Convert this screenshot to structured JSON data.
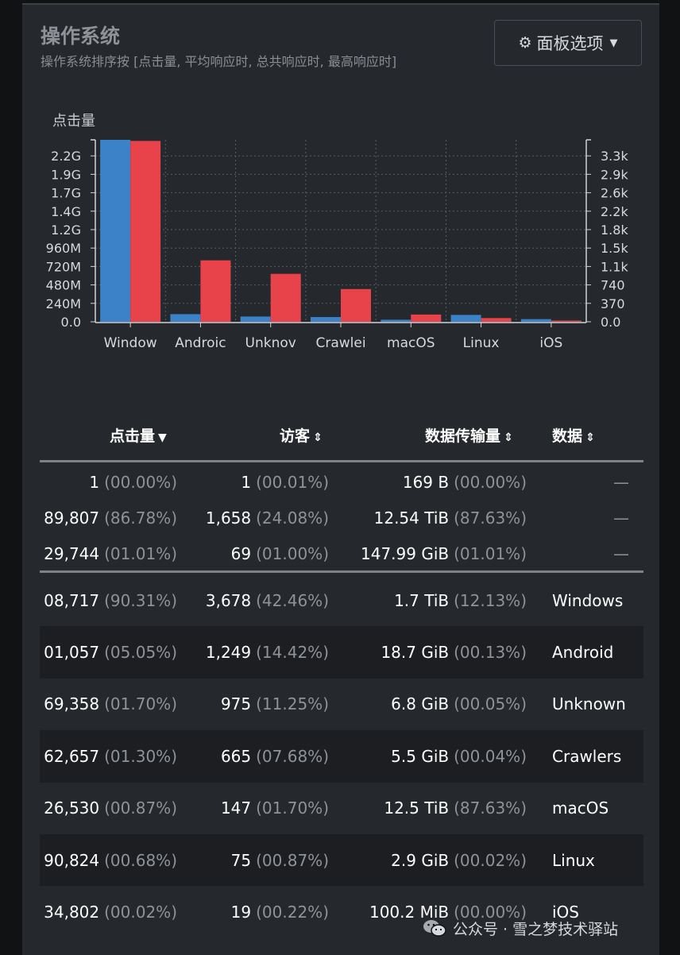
{
  "panel": {
    "title": "操作系统",
    "subtitle": "操作系统排序按 [点击量, 平均响应时, 总共响应时, 最高响应时]",
    "options_button": {
      "icon": "gear-icon",
      "label": "面板选项",
      "caret_icon": "caret-down-icon"
    }
  },
  "chart_data": {
    "type": "bar",
    "ylabel": "点击量",
    "categories": [
      "Window",
      "Androic",
      "Unknov",
      "Crawlei",
      "macOS",
      "Linux",
      "iOS"
    ],
    "left_axis_ticks": [
      "0.0",
      "240M",
      "480M",
      "720M",
      "960M",
      "1.2G",
      "1.4G",
      "1.7G",
      "1.9G",
      "2.2G"
    ],
    "right_axis_ticks": [
      "0.0",
      "370",
      "740",
      "1.1k",
      "1.5k",
      "1.8k",
      "2.2k",
      "2.6k",
      "2.9k",
      "3.3k"
    ],
    "left_ylim": [
      0,
      2400000000
    ],
    "right_ylim": [
      0,
      3700
    ],
    "series": [
      {
        "axis": "left",
        "color": "#3b82c8",
        "values": [
          2408717,
          101057,
          69358,
          62657,
          26530,
          90824,
          34802
        ]
      },
      {
        "axis": "right",
        "color": "#e8434b",
        "values": [
          3678,
          1249,
          975,
          665,
          147,
          75,
          19
        ]
      }
    ],
    "grid": true
  },
  "table": {
    "headers": [
      {
        "label": "点击量",
        "sort_icon": "caret-down-icon"
      },
      {
        "label": "访客",
        "sort_icon": "sort-icon"
      },
      {
        "label": "数据传输量",
        "sort_icon": "sort-icon"
      },
      {
        "label": "数据",
        "sort_icon": "sort-icon"
      }
    ],
    "summary_rows": [
      {
        "hits": "1",
        "hits_pct": "(00.00%)",
        "visitors": "1",
        "visitors_pct": "(00.01%)",
        "bw": "169 B",
        "bw_pct": "(00.00%)",
        "data": "—"
      },
      {
        "hits": "89,807",
        "hits_pct": "(86.78%)",
        "visitors": "1,658",
        "visitors_pct": "(24.08%)",
        "bw": "12.54 TiB",
        "bw_pct": "(87.63%)",
        "data": "—"
      },
      {
        "hits": "29,744",
        "hits_pct": "(01.01%)",
        "visitors": "69",
        "visitors_pct": "(01.00%)",
        "bw": "147.99 GiB",
        "bw_pct": "(01.01%)",
        "data": "—"
      }
    ],
    "rows": [
      {
        "hits": "08,717",
        "hits_pct": "(90.31%)",
        "visitors": "3,678",
        "visitors_pct": "(42.46%)",
        "bw": "1.7 TiB",
        "bw_pct": "(12.13%)",
        "data": "Windows"
      },
      {
        "hits": "01,057",
        "hits_pct": "(05.05%)",
        "visitors": "1,249",
        "visitors_pct": "(14.42%)",
        "bw": "18.7 GiB",
        "bw_pct": "(00.13%)",
        "data": "Android"
      },
      {
        "hits": "69,358",
        "hits_pct": "(01.70%)",
        "visitors": "975",
        "visitors_pct": "(11.25%)",
        "bw": "6.8 GiB",
        "bw_pct": "(00.05%)",
        "data": "Unknown"
      },
      {
        "hits": "62,657",
        "hits_pct": "(01.30%)",
        "visitors": "665",
        "visitors_pct": "(07.68%)",
        "bw": "5.5 GiB",
        "bw_pct": "(00.04%)",
        "data": "Crawlers"
      },
      {
        "hits": "26,530",
        "hits_pct": "(00.87%)",
        "visitors": "147",
        "visitors_pct": "(01.70%)",
        "bw": "12.5 TiB",
        "bw_pct": "(87.63%)",
        "data": "macOS"
      },
      {
        "hits": "90,824",
        "hits_pct": "(00.68%)",
        "visitors": "75",
        "visitors_pct": "(00.87%)",
        "bw": "2.9 GiB",
        "bw_pct": "(00.02%)",
        "data": "Linux"
      },
      {
        "hits": "34,802",
        "hits_pct": "(00.02%)",
        "visitors": "19",
        "visitors_pct": "(00.22%)",
        "bw": "100.2 MiB",
        "bw_pct": "(00.00%)",
        "data": "iOS"
      }
    ]
  },
  "watermark": {
    "icon": "wechat-icon",
    "text": "公众号 · 雪之梦技术驿站"
  }
}
